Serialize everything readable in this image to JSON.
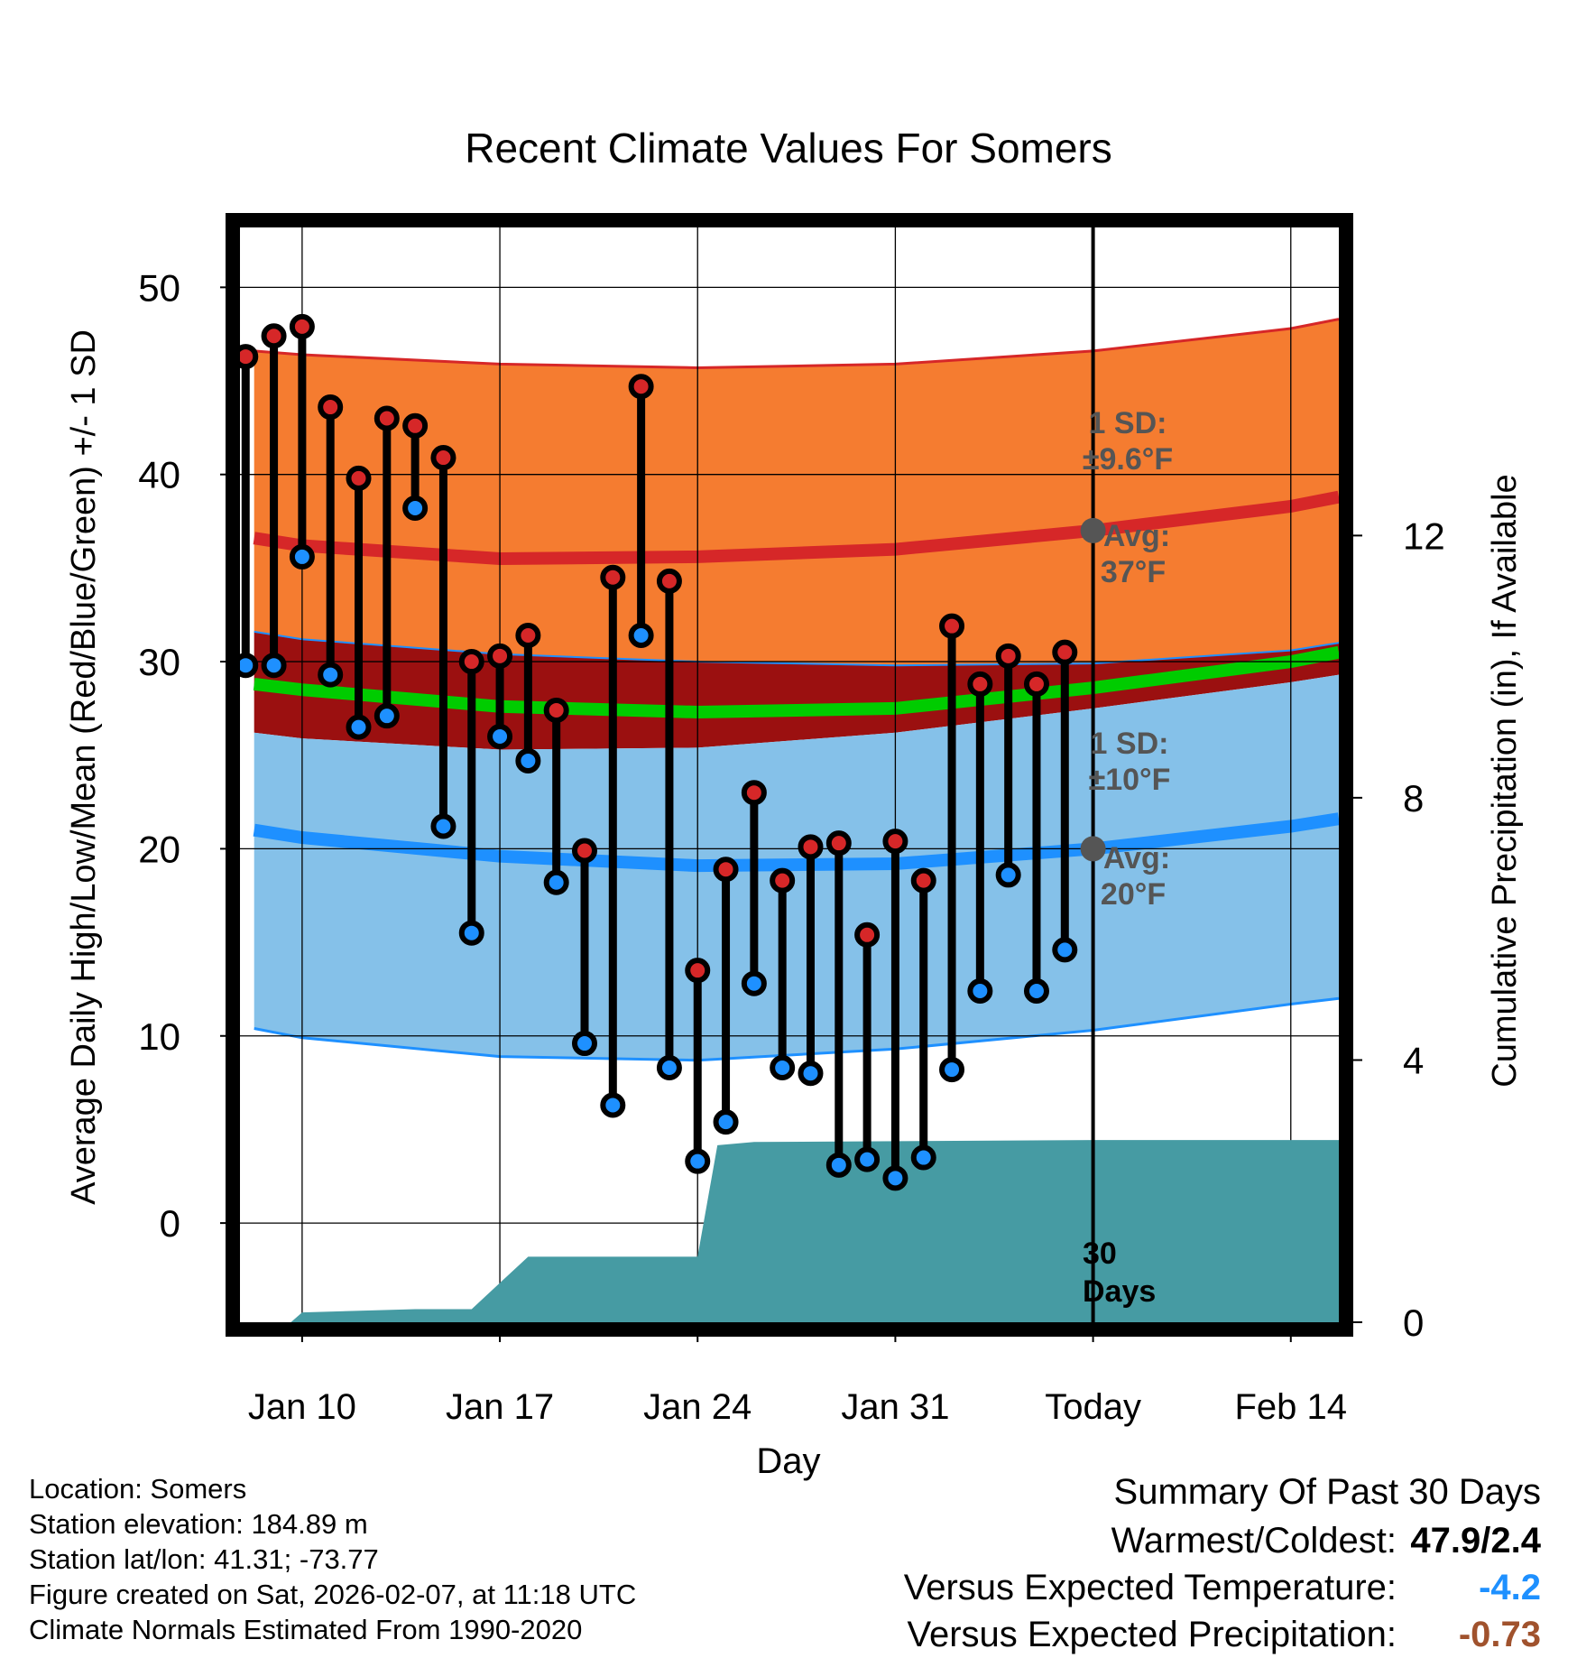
{
  "chart_data": {
    "type": "line",
    "title": "Recent Climate Values For Somers",
    "xlabel": "Day",
    "ylabel": "Average Daily High/Low/Mean (Red/Blue/Green) +/- 1 SD",
    "y2label": "Cumulative Precipitation (in), If Available",
    "xlim": [
      7.8,
      46.7
    ],
    "ylim": [
      -5.3,
      53.2
    ],
    "y2lim": [
      0,
      16.7
    ],
    "xticks": [
      {
        "x": 10,
        "label": "Jan 10"
      },
      {
        "x": 17,
        "label": "Jan 17"
      },
      {
        "x": 24,
        "label": "Jan 24"
      },
      {
        "x": 31,
        "label": "Jan 31"
      },
      {
        "x": 38,
        "label": "Today"
      },
      {
        "x": 45,
        "label": "Feb 14"
      }
    ],
    "yticks": [
      0,
      10,
      20,
      30,
      40,
      50
    ],
    "y2ticks": [
      0,
      4,
      8,
      12
    ],
    "today_x": 38,
    "today_label": "30 Days",
    "normals": {
      "x": [
        8.3,
        10,
        17,
        24,
        31,
        38,
        45,
        46.7
      ],
      "high_avg": [
        36.6,
        36.2,
        35.5,
        35.6,
        36,
        37,
        38.3,
        38.8
      ],
      "high_upper": [
        46.6,
        46.4,
        45.9,
        45.7,
        45.9,
        46.6,
        47.8,
        48.3
      ],
      "high_lower": [
        31.6,
        31.2,
        30.4,
        30,
        29.8,
        29.9,
        30.6,
        31
      ],
      "mean": [
        28.8,
        28.5,
        27.6,
        27.3,
        27.5,
        28.6,
        30,
        30.5
      ],
      "low_upper": [
        26.2,
        25.9,
        25.3,
        25.4,
        26.2,
        27.5,
        28.9,
        29.3
      ],
      "low_avg": [
        21,
        20.6,
        19.6,
        19.1,
        19.2,
        20,
        21.2,
        21.6
      ],
      "low_lower": [
        10.4,
        9.9,
        8.9,
        8.7,
        9.3,
        10.3,
        11.7,
        12
      ]
    },
    "series": [
      {
        "name": "High",
        "color": "#d62728",
        "x": [
          8,
          9,
          10,
          11,
          12,
          13,
          14,
          15,
          16,
          17,
          18,
          19,
          20,
          21,
          22,
          23,
          24,
          25,
          26,
          27,
          28,
          29,
          30,
          31,
          32,
          33,
          34,
          35,
          36,
          37
        ],
        "values": [
          46.3,
          47.4,
          47.9,
          43.6,
          39.8,
          43,
          42.6,
          40.9,
          30,
          30.3,
          31.4,
          27.4,
          19.9,
          34.5,
          44.7,
          34.3,
          13.5,
          18.9,
          23,
          18.3,
          20.1,
          20.3,
          15.4,
          20.4,
          18.3,
          31.9,
          28.8,
          30.3,
          28.8,
          30.5
        ]
      },
      {
        "name": "Low",
        "color": "#1e90ff",
        "x": [
          8,
          9,
          10,
          11,
          12,
          13,
          14,
          15,
          16,
          17,
          18,
          19,
          20,
          21,
          22,
          23,
          24,
          25,
          26,
          27,
          28,
          29,
          30,
          31,
          32,
          33,
          34,
          35,
          36,
          37
        ],
        "values": [
          29.8,
          29.8,
          35.6,
          29.3,
          26.5,
          27.1,
          38.2,
          21.2,
          15.5,
          26,
          24.7,
          18.2,
          9.6,
          6.3,
          31.4,
          8.3,
          3.3,
          5.4,
          12.8,
          8.3,
          8,
          3.1,
          3.4,
          2.4,
          3.5,
          8.2,
          12.4,
          18.6,
          12.4,
          14.6
        ]
      }
    ],
    "precipitation": {
      "name": "Cumulative Precipitation",
      "x": [
        8.3,
        9.6,
        10,
        14,
        16,
        17,
        18,
        24,
        24.7,
        26,
        38,
        46.7
      ],
      "values": [
        0,
        0,
        0.15,
        0.2,
        0.2,
        0.6,
        1,
        1,
        2.7,
        2.75,
        2.78,
        2.78
      ]
    },
    "annotations": {
      "high_sd_line1": "1 SD:",
      "high_sd_line2": "±9.6°F",
      "high_avg_line1": "Avg:",
      "high_avg_line2": "37°F",
      "low_sd_line1": "1 SD:",
      "low_sd_line2": "±10°F",
      "low_avg_line1": "Avg:",
      "low_avg_line2": "20°F",
      "days_line1": "30",
      "days_line2": "Days"
    },
    "colors": {
      "high_band": "#f57c30",
      "high_line": "#d62728",
      "mean_band": "#9b1010",
      "mean_line": "#00cc00",
      "low_band": "#85c1e9",
      "low_line": "#1e90ff",
      "precip": "#469ba3",
      "annot": "#555555",
      "marker_high": "#d62728",
      "marker_low": "#1e90ff"
    }
  },
  "info": {
    "location": "Location: Somers",
    "elevation": "Station elevation: 184.89 m",
    "latlon": "Station lat/lon: 41.31; -73.77",
    "created": "Figure created on Sat, 2026-02-07, at 11:18 UTC",
    "normals": "Climate Normals Estimated From 1990-2020"
  },
  "summary": {
    "heading": "Summary Of Past 30 Days",
    "warm_cold_label": "Warmest/Coldest:",
    "warm_cold_value": "47.9/2.4",
    "temp_label": "Versus Expected Temperature:",
    "temp_value": "-4.2",
    "temp_color": "#1e90ff",
    "precip_label": "Versus Expected Precipitation:",
    "precip_value": "-0.73",
    "precip_color": "#a0522d"
  }
}
